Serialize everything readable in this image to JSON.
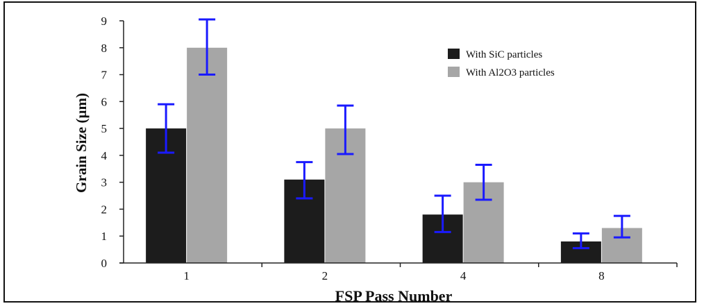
{
  "chart_data": {
    "type": "bar",
    "categories": [
      "1",
      "2",
      "4",
      "8"
    ],
    "series": [
      {
        "name": "With SiC particles",
        "color": "#1c1c1c",
        "values": [
          5.0,
          3.1,
          1.8,
          0.8
        ],
        "error_low": [
          4.1,
          2.4,
          1.15,
          0.55
        ],
        "error_high": [
          5.9,
          3.75,
          2.5,
          1.1
        ]
      },
      {
        "name": "With Al2O3 particles",
        "color": "#a6a6a6",
        "values": [
          8.0,
          5.0,
          3.0,
          1.3
        ],
        "error_low": [
          7.0,
          4.05,
          2.35,
          0.95
        ],
        "error_high": [
          9.05,
          5.85,
          3.65,
          1.75
        ]
      }
    ],
    "error_bar_color": "#1a1aff",
    "xlabel": "FSP Pass Number",
    "ylabel": "Grain Size (µm)",
    "ylim": [
      0,
      9
    ],
    "yticks": [
      "0",
      "1",
      "2",
      "3",
      "4",
      "5",
      "6",
      "7",
      "8",
      "9"
    ],
    "grid": false,
    "legend_position": "top-right"
  }
}
